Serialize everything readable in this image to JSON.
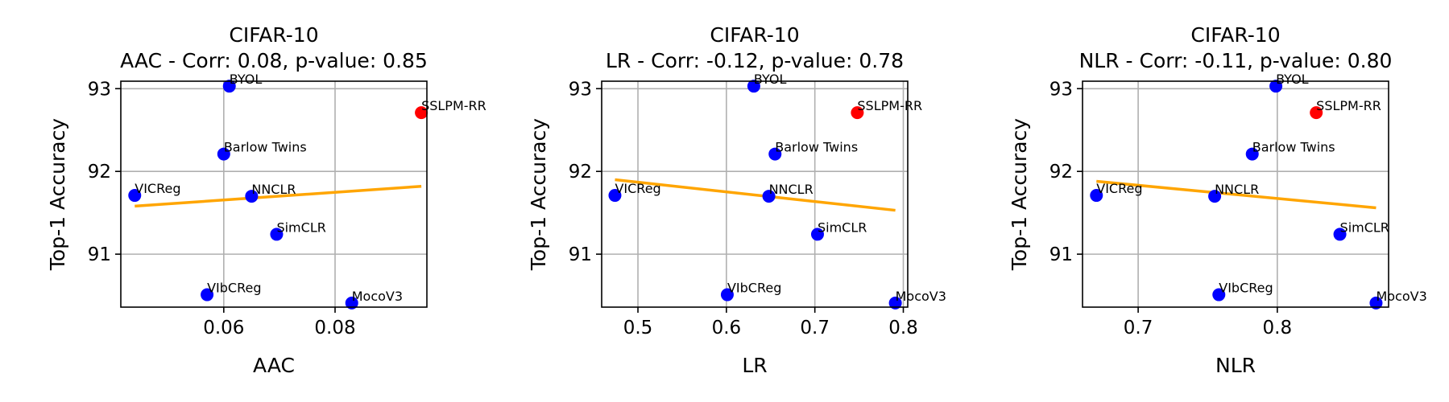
{
  "chart_data": [
    {
      "type": "scatter",
      "title": "CIFAR-10",
      "subtitle": "AAC - Corr: 0.08, p-value: 0.85",
      "xlabel": "AAC",
      "ylabel": "Top-1 Accuracy",
      "xlim": [
        0.0415,
        0.0965
      ],
      "ylim": [
        90.36,
        93.09
      ],
      "xticks": [
        0.06,
        0.08
      ],
      "xtick_labels": [
        "0.06",
        "0.08"
      ],
      "yticks": [
        91,
        92,
        93
      ],
      "ytick_labels": [
        "91",
        "92",
        "93"
      ],
      "grid": true,
      "fit_line": {
        "x": [
          0.044,
          0.0955
        ],
        "y": [
          91.58,
          91.82
        ],
        "color": "#FFA500"
      },
      "points": [
        {
          "label": "BYOL",
          "x": 0.061,
          "y": 93.03,
          "color": "#0000FF"
        },
        {
          "label": "SSLPM-RR",
          "x": 0.0955,
          "y": 92.71,
          "color": "#FF0000"
        },
        {
          "label": "Barlow Twins",
          "x": 0.06,
          "y": 92.21,
          "color": "#0000FF"
        },
        {
          "label": "VICReg",
          "x": 0.044,
          "y": 91.71,
          "color": "#0000FF"
        },
        {
          "label": "NNCLR",
          "x": 0.065,
          "y": 91.7,
          "color": "#0000FF"
        },
        {
          "label": "SimCLR",
          "x": 0.0695,
          "y": 91.24,
          "color": "#0000FF"
        },
        {
          "label": "VIbCReg",
          "x": 0.057,
          "y": 90.51,
          "color": "#0000FF"
        },
        {
          "label": "MocoV3",
          "x": 0.083,
          "y": 90.41,
          "color": "#0000FF"
        }
      ]
    },
    {
      "type": "scatter",
      "title": "CIFAR-10",
      "subtitle": "LR - Corr: -0.12, p-value: 0.78",
      "xlabel": "LR",
      "ylabel": "Top-1 Accuracy",
      "xlim": [
        0.459,
        0.805
      ],
      "ylim": [
        90.36,
        93.09
      ],
      "xticks": [
        0.5,
        0.6,
        0.7,
        0.8
      ],
      "xtick_labels": [
        "0.5",
        "0.6",
        "0.7",
        "0.8"
      ],
      "yticks": [
        91,
        92,
        93
      ],
      "ytick_labels": [
        "91",
        "92",
        "93"
      ],
      "grid": true,
      "fit_line": {
        "x": [
          0.474,
          0.791
        ],
        "y": [
          91.9,
          91.53
        ],
        "color": "#FFA500"
      },
      "points": [
        {
          "label": "BYOL",
          "x": 0.631,
          "y": 93.03,
          "color": "#0000FF"
        },
        {
          "label": "SSLPM-RR",
          "x": 0.748,
          "y": 92.71,
          "color": "#FF0000"
        },
        {
          "label": "Barlow Twins",
          "x": 0.655,
          "y": 92.21,
          "color": "#0000FF"
        },
        {
          "label": "VICReg",
          "x": 0.474,
          "y": 91.71,
          "color": "#0000FF"
        },
        {
          "label": "NNCLR",
          "x": 0.648,
          "y": 91.7,
          "color": "#0000FF"
        },
        {
          "label": "SimCLR",
          "x": 0.703,
          "y": 91.24,
          "color": "#0000FF"
        },
        {
          "label": "VIbCReg",
          "x": 0.601,
          "y": 90.51,
          "color": "#0000FF"
        },
        {
          "label": "MocoV3",
          "x": 0.791,
          "y": 90.41,
          "color": "#0000FF"
        }
      ]
    },
    {
      "type": "scatter",
      "title": "CIFAR-10",
      "subtitle": "NLR - Corr: -0.11, p-value: 0.80",
      "xlabel": "NLR",
      "ylabel": "Top-1 Accuracy",
      "xlim": [
        0.66,
        0.88
      ],
      "ylim": [
        90.36,
        93.09
      ],
      "xticks": [
        0.7,
        0.8
      ],
      "xtick_labels": [
        "0.7",
        "0.8"
      ],
      "yticks": [
        91,
        92,
        93
      ],
      "ytick_labels": [
        "91",
        "92",
        "93"
      ],
      "grid": true,
      "fit_line": {
        "x": [
          0.67,
          0.871
        ],
        "y": [
          91.88,
          91.56
        ],
        "color": "#FFA500"
      },
      "points": [
        {
          "label": "BYOL",
          "x": 0.799,
          "y": 93.03,
          "color": "#0000FF"
        },
        {
          "label": "SSLPM-RR",
          "x": 0.828,
          "y": 92.71,
          "color": "#FF0000"
        },
        {
          "label": "Barlow Twins",
          "x": 0.782,
          "y": 92.21,
          "color": "#0000FF"
        },
        {
          "label": "VICReg",
          "x": 0.67,
          "y": 91.71,
          "color": "#0000FF"
        },
        {
          "label": "NNCLR",
          "x": 0.755,
          "y": 91.7,
          "color": "#0000FF"
        },
        {
          "label": "SimCLR",
          "x": 0.845,
          "y": 91.24,
          "color": "#0000FF"
        },
        {
          "label": "VIbCReg",
          "x": 0.758,
          "y": 90.51,
          "color": "#0000FF"
        },
        {
          "label": "MocoV3",
          "x": 0.871,
          "y": 90.41,
          "color": "#0000FF"
        }
      ]
    }
  ]
}
